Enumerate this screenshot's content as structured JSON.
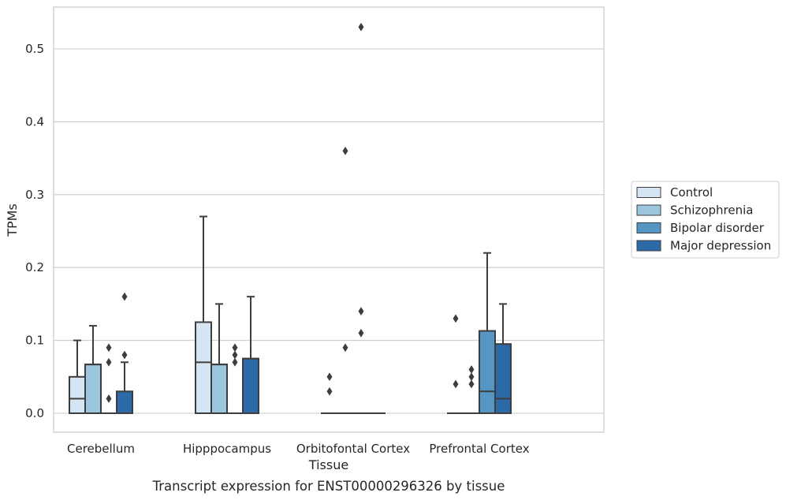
{
  "chart_data": {
    "type": "box",
    "ylabel": "TPMs",
    "xlabel": "Tissue",
    "caption": "Transcript expression for ENST00000296326 by tissue",
    "ylim": [
      -0.026,
      0.556
    ],
    "yticks": [
      0.0,
      0.1,
      0.2,
      0.3,
      0.4,
      0.5
    ],
    "ytick_labels": [
      "0.0",
      "0.1",
      "0.2",
      "0.3",
      "0.4",
      "0.5"
    ],
    "grid": "horizontal",
    "legend_position": "right",
    "categories": [
      "Cerebellum",
      "Hipppocampus",
      "Orbitofontal Cortex",
      "Prefrontal Cortex"
    ],
    "series": [
      {
        "name": "Control",
        "color": "#d6e5f4",
        "boxes": [
          {
            "whislo": 0.0,
            "q1": 0.0,
            "med": 0.02,
            "q3": 0.05,
            "whishi": 0.1,
            "fliers": []
          },
          {
            "whislo": 0.0,
            "q1": 0.0,
            "med": 0.07,
            "q3": 0.125,
            "whishi": 0.27,
            "fliers": []
          },
          {
            "whislo": 0.0,
            "q1": 0.0,
            "med": 0.0,
            "q3": 0.0,
            "whishi": 0.0,
            "fliers": [
              0.05,
              0.03
            ]
          },
          {
            "whislo": 0.0,
            "q1": 0.0,
            "med": 0.0,
            "q3": 0.0,
            "whishi": 0.0,
            "fliers": [
              0.13,
              0.04
            ]
          }
        ]
      },
      {
        "name": "Schizophrenia",
        "color": "#9cc5de",
        "boxes": [
          {
            "whislo": 0.0,
            "q1": 0.0,
            "med": 0.067,
            "q3": 0.067,
            "whishi": 0.12,
            "fliers": []
          },
          {
            "whislo": 0.0,
            "q1": 0.0,
            "med": 0.067,
            "q3": 0.067,
            "whishi": 0.15,
            "fliers": []
          },
          {
            "whislo": 0.0,
            "q1": 0.0,
            "med": 0.0,
            "q3": 0.0,
            "whishi": 0.0,
            "fliers": [
              0.36,
              0.09
            ]
          },
          {
            "whislo": 0.0,
            "q1": 0.0,
            "med": 0.0,
            "q3": 0.0,
            "whishi": 0.0,
            "fliers": [
              0.06,
              0.05,
              0.04
            ]
          }
        ]
      },
      {
        "name": "Bipolar disorder",
        "color": "#5596c4",
        "boxes": [
          {
            "whislo": 0.0,
            "q1": 0.0,
            "med": 0.0,
            "q3": 0.0,
            "whishi": 0.0,
            "fliers": [
              0.09,
              0.07,
              0.02
            ]
          },
          {
            "whislo": 0.0,
            "q1": 0.0,
            "med": 0.0,
            "q3": 0.0,
            "whishi": 0.0,
            "fliers": [
              0.09,
              0.08,
              0.07
            ]
          },
          {
            "whislo": 0.0,
            "q1": 0.0,
            "med": 0.0,
            "q3": 0.0,
            "whishi": 0.0,
            "fliers": [
              0.53,
              0.14,
              0.11
            ]
          },
          {
            "whislo": 0.0,
            "q1": 0.0,
            "med": 0.03,
            "q3": 0.113,
            "whishi": 0.22,
            "fliers": []
          }
        ]
      },
      {
        "name": "Major depression",
        "color": "#2b6aa7",
        "boxes": [
          {
            "whislo": 0.0,
            "q1": 0.0,
            "med": 0.0,
            "q3": 0.03,
            "whishi": 0.07,
            "fliers": [
              0.16,
              0.08
            ]
          },
          {
            "whislo": 0.0,
            "q1": 0.0,
            "med": 0.075,
            "q3": 0.075,
            "whishi": 0.16,
            "fliers": []
          },
          {
            "whislo": 0.0,
            "q1": 0.0,
            "med": 0.0,
            "q3": 0.0,
            "whishi": 0.0,
            "fliers": []
          },
          {
            "whislo": 0.0,
            "q1": 0.0,
            "med": 0.02,
            "q3": 0.095,
            "whishi": 0.15,
            "fliers": []
          }
        ]
      }
    ]
  }
}
